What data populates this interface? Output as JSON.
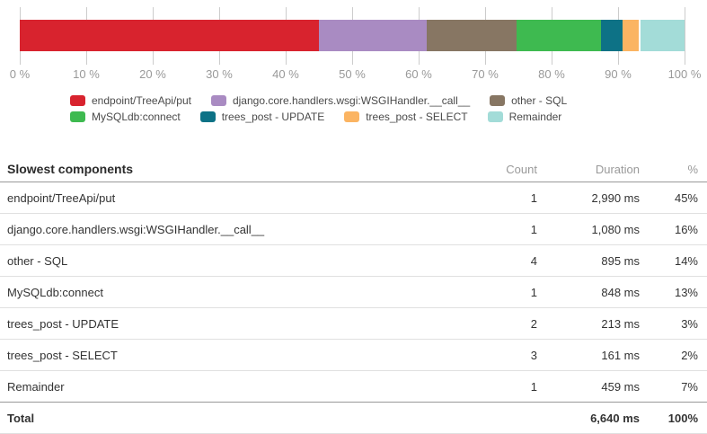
{
  "chart_data": {
    "type": "bar",
    "subtype": "horizontal_stacked_percentage",
    "title": "",
    "total_duration_ms": 6640,
    "x_axis": {
      "min": 0,
      "max": 100,
      "tick_step": 10,
      "tick_labels": [
        "0 %",
        "10 %",
        "20 %",
        "30 %",
        "40 %",
        "50 %",
        "60 %",
        "70 %",
        "80 %",
        "90 %",
        "100 %"
      ]
    },
    "legend_position": "below",
    "grid": true,
    "segments": [
      {
        "name": "endpoint/TreeApi/put",
        "color": "#d8232e",
        "duration_ms": 2990,
        "percent": 45
      },
      {
        "name": "django.core.handlers.wsgi:WSGIHandler.__call__",
        "color": "#a98bc2",
        "duration_ms": 1080,
        "percent": 16
      },
      {
        "name": "other - SQL",
        "color": "#877663",
        "duration_ms": 895,
        "percent": 14
      },
      {
        "name": "MySQLdb:connect",
        "color": "#3eba50",
        "duration_ms": 848,
        "percent": 13
      },
      {
        "name": "trees_post - UPDATE",
        "color": "#0d7286",
        "duration_ms": 213,
        "percent": 3
      },
      {
        "name": "trees_post - SELECT",
        "color": "#fbb462",
        "duration_ms": 161,
        "percent": 2
      },
      {
        "name": "Remainder",
        "color": "#a3dcd8",
        "duration_ms": 459,
        "percent": 7,
        "gap_before": true
      }
    ]
  },
  "table": {
    "title": "Slowest components",
    "columns": [
      "Count",
      "Duration",
      "%"
    ],
    "rows": [
      {
        "name": "endpoint/TreeApi/put",
        "count": "1",
        "duration": "2,990 ms",
        "percent": "45%"
      },
      {
        "name": "django.core.handlers.wsgi:WSGIHandler.__call__",
        "count": "1",
        "duration": "1,080 ms",
        "percent": "16%"
      },
      {
        "name": "other - SQL",
        "count": "4",
        "duration": "895 ms",
        "percent": "14%"
      },
      {
        "name": "MySQLdb:connect",
        "count": "1",
        "duration": "848 ms",
        "percent": "13%"
      },
      {
        "name": "trees_post - UPDATE",
        "count": "2",
        "duration": "213 ms",
        "percent": "3%"
      },
      {
        "name": "trees_post - SELECT",
        "count": "3",
        "duration": "161 ms",
        "percent": "2%"
      },
      {
        "name": "Remainder",
        "count": "1",
        "duration": "459 ms",
        "percent": "7%"
      }
    ],
    "total": {
      "name": "Total",
      "count": "",
      "duration": "6,640 ms",
      "percent": "100%"
    }
  },
  "colors": {
    "gridline": "#cccccc",
    "axis_label": "#999999",
    "legend_text": "#4a4a4a",
    "table_text": "#333333",
    "column_header_text": "#999999",
    "separator": "#e0e0e0",
    "strong_separator": "#999999"
  }
}
